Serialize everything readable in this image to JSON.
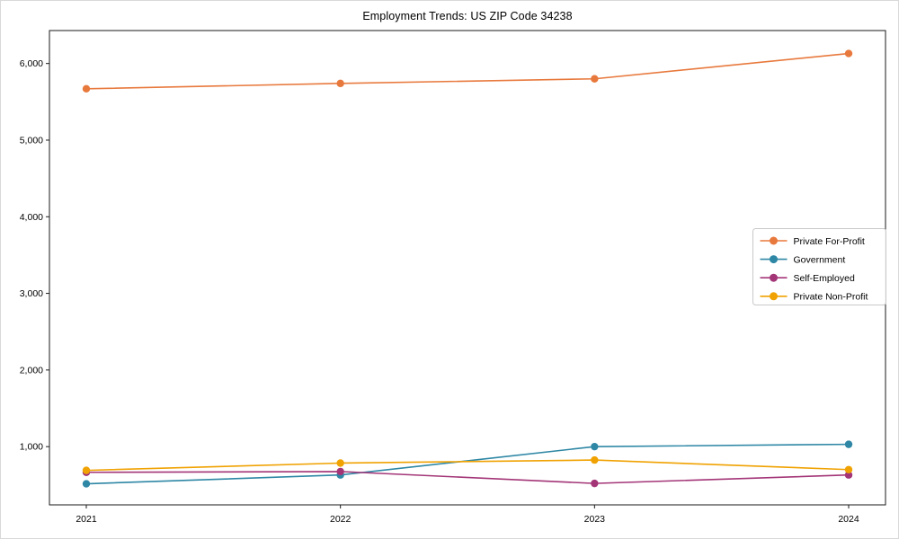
{
  "chart_data": {
    "type": "line",
    "title": "Employment Trends: US ZIP Code 34238",
    "xlabel": "",
    "ylabel": "",
    "categories": [
      "2021",
      "2022",
      "2023",
      "2024"
    ],
    "series": [
      {
        "name": "Private For-Profit",
        "color": "#e8793d",
        "values": [
          5670,
          5740,
          5800,
          6130
        ]
      },
      {
        "name": "Government",
        "color": "#2e87a5",
        "values": [
          515,
          630,
          1000,
          1030
        ]
      },
      {
        "name": "Self-Employed",
        "color": "#a33577",
        "values": [
          665,
          675,
          520,
          630
        ]
      },
      {
        "name": "Private Non-Profit",
        "color": "#f0a202",
        "values": [
          690,
          785,
          825,
          700
        ]
      }
    ],
    "yticks": [
      {
        "value": 1000,
        "label": "1,000"
      },
      {
        "value": 2000,
        "label": "2,000"
      },
      {
        "value": 3000,
        "label": "3,000"
      },
      {
        "value": 4000,
        "label": "4,000"
      },
      {
        "value": 5000,
        "label": "5,000"
      },
      {
        "value": 6000,
        "label": "6,000"
      }
    ],
    "ylim": [
      240,
      6430
    ],
    "grid": false,
    "legend_position": "right-middle",
    "axis_color": "#1a1a1a",
    "legend_border_color": "#c8c8c8",
    "legend_background": "#ffffff"
  }
}
